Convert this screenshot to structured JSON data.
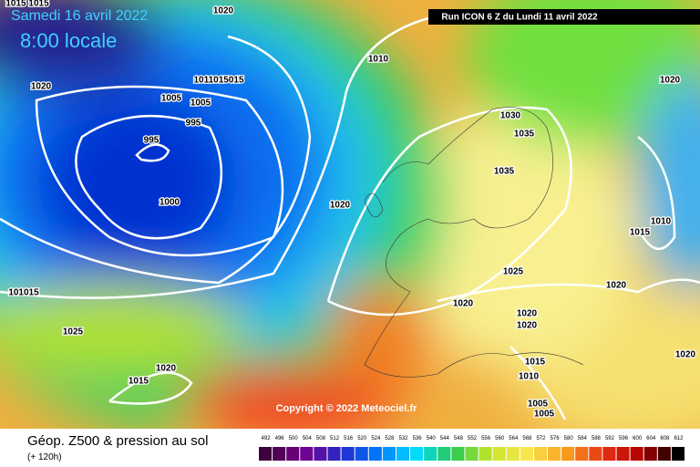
{
  "header": {
    "date": "Samedi 16 avril 2022",
    "time": "8:00 locale",
    "run": "Run ICON 6 Z du Lundi 11 avril 2022"
  },
  "copyright": "Copyright © 2022 Meteociel.fr",
  "footer": {
    "title": "Géop. Z500 & pression au sol",
    "subtitle": "(+ 120h)"
  },
  "colorbar": {
    "labels": [
      "492",
      "496",
      "500",
      "504",
      "508",
      "512",
      "516",
      "520",
      "524",
      "528",
      "532",
      "536",
      "540",
      "544",
      "548",
      "552",
      "556",
      "560",
      "564",
      "568",
      "572",
      "576",
      "580",
      "584",
      "588",
      "592",
      "596",
      "600",
      "604",
      "608",
      "612"
    ]
  },
  "isobars": [
    "1015 1015",
    "1020",
    "1010",
    "1020",
    "1005",
    "1011015015",
    "1005",
    "995",
    "995",
    "1000",
    "1020",
    "1030",
    "1035",
    "1035",
    "1020",
    "1010",
    "1015",
    "1025",
    "1020",
    "1020",
    "101015",
    "1025",
    "1020",
    "1015",
    "1020",
    "1020",
    "1015",
    "1010",
    "1005",
    "1005",
    "1020"
  ]
}
